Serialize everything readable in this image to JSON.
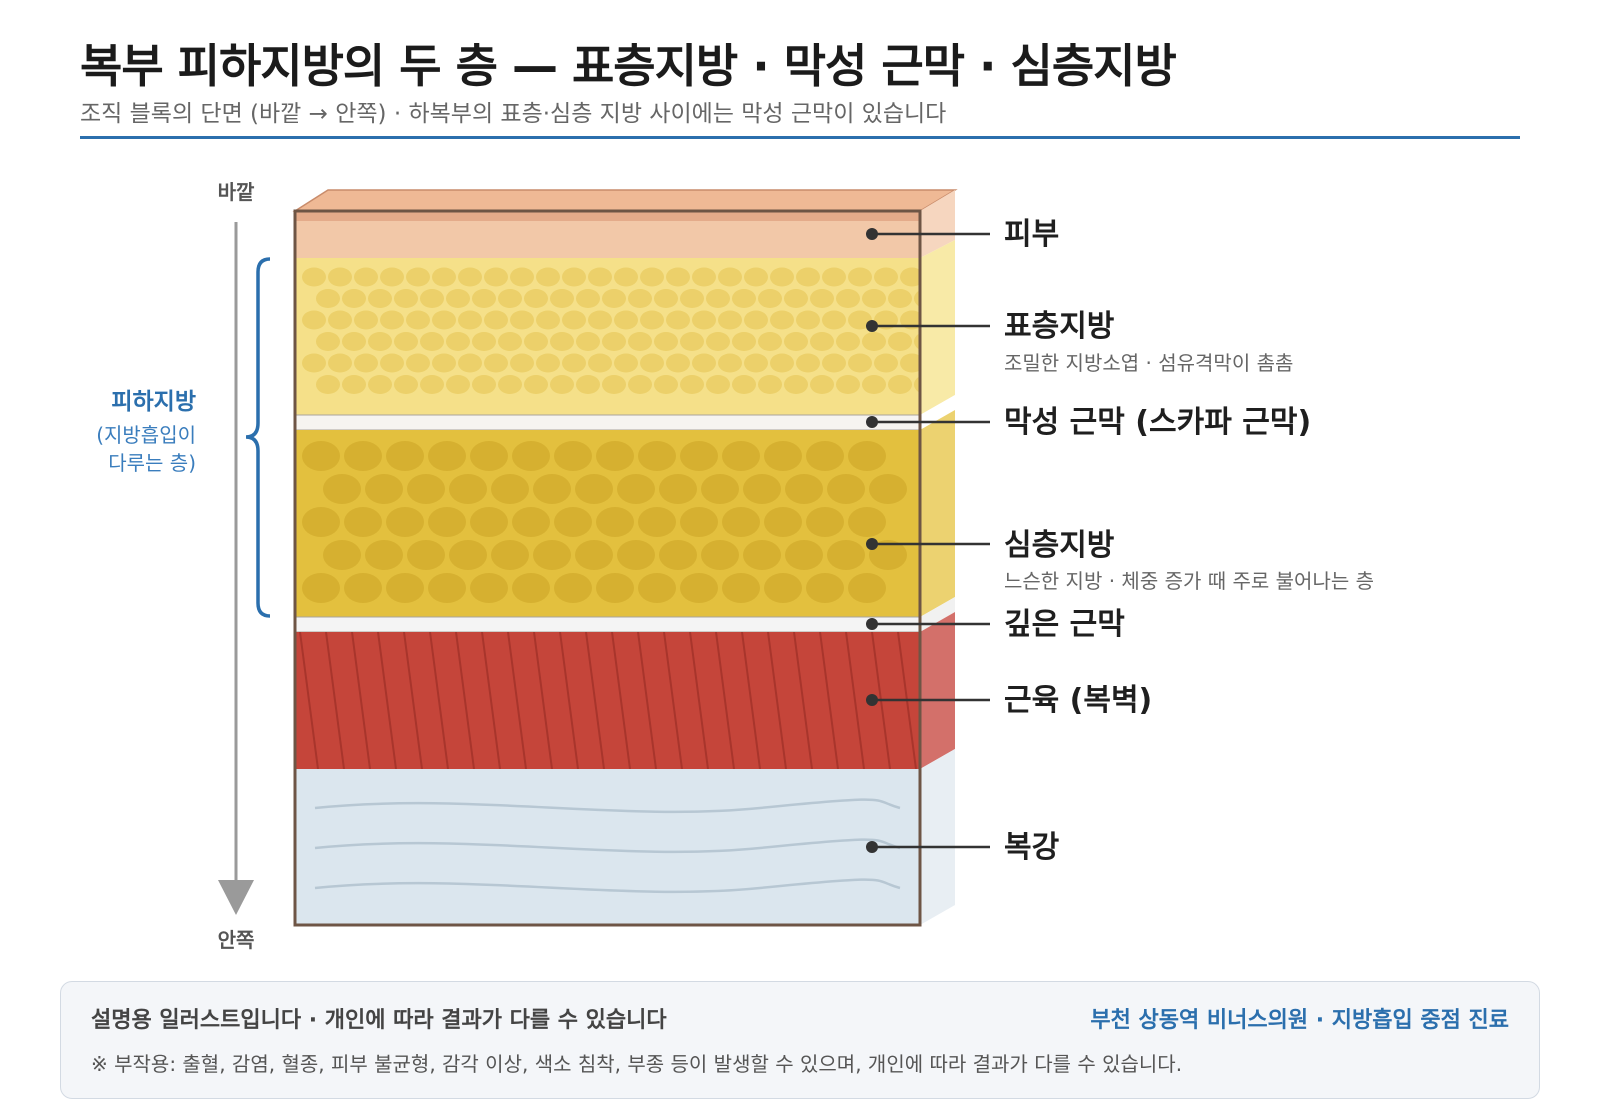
{
  "header": {
    "title": "복부 피하지방의 두 층 — 표층지방 · 막성 근막 · 심층지방",
    "subtitle": "조직 블록의 단면 (바깥 → 안쪽) · 하복부의 표층·심층 지방 사이에는 막성 근막이 있습니다"
  },
  "axis": {
    "top_label": "바깥",
    "bottom_label": "안쪽"
  },
  "bracket": {
    "title": "피하지방",
    "note_line1": "(지방흡입이",
    "note_line2": "다루는 층)",
    "color": "#2b6fad"
  },
  "layers": {
    "skin": {
      "label": "피부",
      "color": "#f2c8a8"
    },
    "superficial_fat": {
      "label": "표층지방",
      "desc": "조밀한 지방소엽 · 섬유격막이 촘촘",
      "color": "#f5e089"
    },
    "membranous_fascia": {
      "label": "막성 근막 (스카파 근막)",
      "color": "#f6f4f0"
    },
    "deep_fat": {
      "label": "심층지방",
      "desc": "느슨한 지방 · 체중 증가 때 주로 불어나는 층",
      "color": "#e3c03e"
    },
    "deep_fascia": {
      "label": "깊은 근막",
      "color": "#f6f4f0"
    },
    "muscle": {
      "label": "근육 (복벽)",
      "color": "#c5453a"
    },
    "abdominal_cavity": {
      "label": "복강",
      "color": "#dbe6ee"
    }
  },
  "footer": {
    "note": "설명용 일러스트입니다 · 개인에 따라 결과가 다를 수 있습니다",
    "brand": "부천 상동역 비너스의원 · 지방흡입 중점 진료",
    "side_effects": "※ 부작용: 출혈, 감염, 혈종, 피부 불균형, 감각 이상, 색소 침착, 부종 등이 발생할 수 있으며, 개인에 따라 결과가 다를 수 있습니다."
  }
}
